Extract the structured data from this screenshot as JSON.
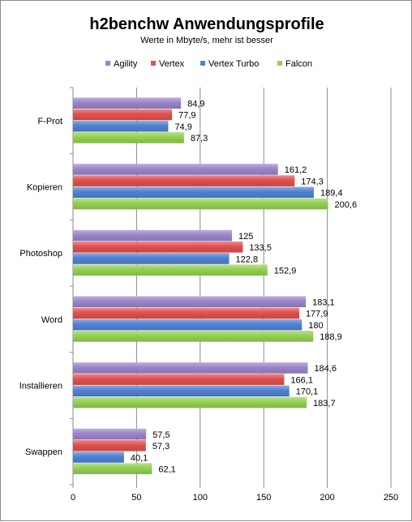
{
  "chart_data": {
    "type": "bar",
    "orientation": "horizontal",
    "title": "h2benchw Anwendungsprofile",
    "subtitle": "Werte in Mbyte/s,  mehr ist besser",
    "categories": [
      "F-Prot",
      "Kopieren",
      "Photoshop",
      "Word",
      "Installieren",
      "Swappen"
    ],
    "series": [
      {
        "name": "Agility",
        "color": "#9b84c9",
        "values": [
          84.9,
          161.2,
          125,
          183.1,
          184.6,
          57.5
        ],
        "labels": [
          "84,9",
          "161,2",
          "125",
          "183,1",
          "184,6",
          "57,5"
        ]
      },
      {
        "name": "Vertex",
        "color": "#e0504d",
        "values": [
          77.9,
          174.3,
          133.5,
          177.9,
          166.1,
          57.3
        ],
        "labels": [
          "77,9",
          "174,3",
          "133,5",
          "177,9",
          "166,1",
          "57,3"
        ]
      },
      {
        "name": "Vertex Turbo",
        "color": "#4f81d3",
        "values": [
          74.9,
          189.4,
          122.8,
          180,
          170.1,
          40.1
        ],
        "labels": [
          "74,9",
          "189,4",
          "122,8",
          "180",
          "170,1",
          "40,1"
        ]
      },
      {
        "name": "Falcon",
        "color": "#92d050",
        "values": [
          87.3,
          200.6,
          152.9,
          188.9,
          183.7,
          62.1
        ],
        "labels": [
          "87,3",
          "200,6",
          "152,9",
          "188,9",
          "183,7",
          "62,1"
        ]
      }
    ],
    "xlim": [
      0,
      250
    ],
    "xticks": [
      "0",
      "50",
      "100",
      "150",
      "200",
      "250"
    ],
    "grid": true,
    "legend_position": "top"
  }
}
